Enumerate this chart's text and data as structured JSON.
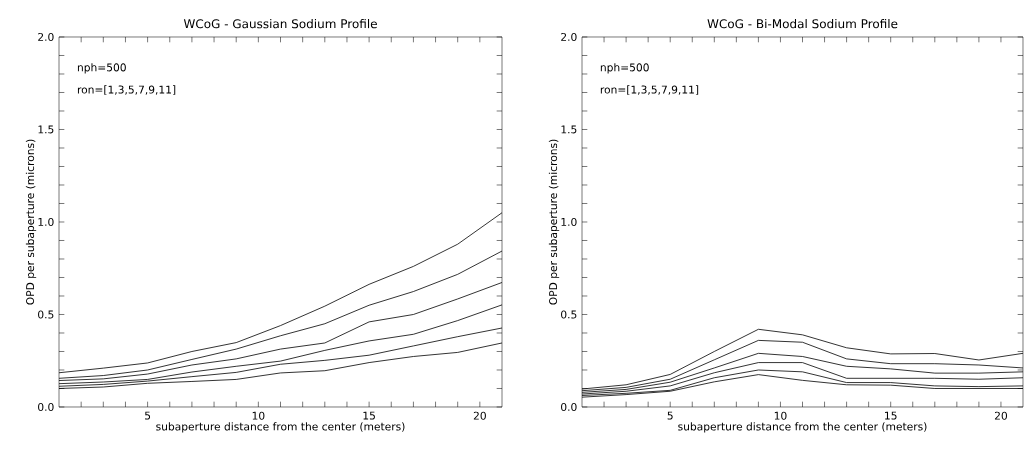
{
  "chart_data": [
    {
      "type": "line",
      "title": "WCoG - Gaussian Sodium Profile",
      "xlabel": "subaperture distance from the center (meters)",
      "ylabel": "OPD per subaperture (microns)",
      "annotations": [
        "nph=500",
        "ron=[1,3,5,7,9,11]"
      ],
      "x": [
        1,
        3,
        5,
        7,
        9,
        11,
        13,
        15,
        17,
        19,
        21
      ],
      "xlim": [
        1,
        21
      ],
      "ylim": [
        0,
        2
      ],
      "xticks": [
        {
          "value": 2,
          "label": null
        },
        {
          "value": 3,
          "label": null
        },
        {
          "value": 4,
          "label": null
        },
        5,
        {
          "value": 6,
          "label": null
        },
        {
          "value": 7,
          "label": null
        },
        {
          "value": 8,
          "label": null
        },
        {
          "value": 9,
          "label": null
        },
        10,
        {
          "value": 11,
          "label": null
        },
        {
          "value": 12,
          "label": null
        },
        {
          "value": 13,
          "label": null
        },
        {
          "value": 14,
          "label": null
        },
        15,
        {
          "value": 16,
          "label": null
        },
        {
          "value": 17,
          "label": null
        },
        {
          "value": 18,
          "label": null
        },
        {
          "value": 19,
          "label": null
        },
        20
      ],
      "yticks": [
        {
          "value": 0,
          "label": "0.0"
        },
        {
          "value": 0.1,
          "label": null
        },
        {
          "value": 0.2,
          "label": null
        },
        {
          "value": 0.3,
          "label": null
        },
        {
          "value": 0.4,
          "label": null
        },
        {
          "value": 0.5,
          "label": "0.5"
        },
        {
          "value": 0.6,
          "label": null
        },
        {
          "value": 0.7,
          "label": null
        },
        {
          "value": 0.8,
          "label": null
        },
        {
          "value": 0.9,
          "label": null
        },
        {
          "value": 1,
          "label": "1.0"
        },
        {
          "value": 1.1,
          "label": null
        },
        {
          "value": 1.2,
          "label": null
        },
        {
          "value": 1.3,
          "label": null
        },
        {
          "value": 1.4,
          "label": null
        },
        {
          "value": 1.5,
          "label": "1.5"
        },
        {
          "value": 1.6,
          "label": null
        },
        {
          "value": 1.7,
          "label": null
        },
        {
          "value": 1.8,
          "label": null
        },
        {
          "value": 1.9,
          "label": null
        },
        {
          "value": 2,
          "label": "2.0"
        }
      ],
      "grid": false,
      "marker": "none",
      "line_style": "solid",
      "series": [
        {
          "color": "#000000",
          "values": [
            0.1,
            0.108,
            0.128,
            0.138,
            0.149,
            0.184,
            0.196,
            0.24,
            0.273,
            0.295,
            0.346
          ]
        },
        {
          "color": "#000000",
          "values": [
            0.112,
            0.122,
            0.14,
            0.164,
            0.187,
            0.231,
            0.252,
            0.28,
            0.33,
            0.38,
            0.427
          ]
        },
        {
          "color": "#000000",
          "values": [
            0.126,
            0.135,
            0.149,
            0.189,
            0.22,
            0.248,
            0.306,
            0.357,
            0.393,
            0.467,
            0.552
          ]
        },
        {
          "color": "#000000",
          "values": [
            0.143,
            0.152,
            0.178,
            0.227,
            0.26,
            0.313,
            0.346,
            0.46,
            0.5,
            0.584,
            0.673
          ]
        },
        {
          "color": "#000000",
          "values": [
            0.155,
            0.17,
            0.2,
            0.257,
            0.313,
            0.385,
            0.45,
            0.55,
            0.624,
            0.717,
            0.843
          ]
        },
        {
          "color": "#000000",
          "values": [
            0.185,
            0.21,
            0.238,
            0.3,
            0.348,
            0.44,
            0.545,
            0.663,
            0.76,
            0.88,
            1.05
          ]
        }
      ]
    },
    {
      "type": "line",
      "title": "WCoG - Bi-Modal Sodium Profile",
      "xlabel": "subaperture distance from the center (meters)",
      "ylabel": "OPD per subaperture (microns)",
      "annotations": [
        "nph=500",
        "ron=[1,3,5,7,9,11]"
      ],
      "x": [
        1,
        3,
        5,
        7,
        9,
        11,
        13,
        15,
        17,
        19,
        21
      ],
      "xlim": [
        1,
        21
      ],
      "ylim": [
        0,
        2
      ],
      "xticks": [
        {
          "value": 2,
          "label": null
        },
        {
          "value": 3,
          "label": null
        },
        {
          "value": 4,
          "label": null
        },
        5,
        {
          "value": 6,
          "label": null
        },
        {
          "value": 7,
          "label": null
        },
        {
          "value": 8,
          "label": null
        },
        {
          "value": 9,
          "label": null
        },
        10,
        {
          "value": 11,
          "label": null
        },
        {
          "value": 12,
          "label": null
        },
        {
          "value": 13,
          "label": null
        },
        {
          "value": 14,
          "label": null
        },
        15,
        {
          "value": 16,
          "label": null
        },
        {
          "value": 17,
          "label": null
        },
        {
          "value": 18,
          "label": null
        },
        {
          "value": 19,
          "label": null
        },
        20
      ],
      "yticks": [
        {
          "value": 0,
          "label": "0.0"
        },
        {
          "value": 0.1,
          "label": null
        },
        {
          "value": 0.2,
          "label": null
        },
        {
          "value": 0.3,
          "label": null
        },
        {
          "value": 0.4,
          "label": null
        },
        {
          "value": 0.5,
          "label": "0.5"
        },
        {
          "value": 0.6,
          "label": null
        },
        {
          "value": 0.7,
          "label": null
        },
        {
          "value": 0.8,
          "label": null
        },
        {
          "value": 0.9,
          "label": null
        },
        {
          "value": 1,
          "label": "1.0"
        },
        {
          "value": 1.1,
          "label": null
        },
        {
          "value": 1.2,
          "label": null
        },
        {
          "value": 1.3,
          "label": null
        },
        {
          "value": 1.4,
          "label": null
        },
        {
          "value": 1.5,
          "label": "1.5"
        },
        {
          "value": 1.6,
          "label": null
        },
        {
          "value": 1.7,
          "label": null
        },
        {
          "value": 1.8,
          "label": null
        },
        {
          "value": 1.9,
          "label": null
        },
        {
          "value": 2,
          "label": "2.0"
        }
      ],
      "grid": false,
      "marker": "none",
      "line_style": "solid",
      "series": [
        {
          "color": "#000000",
          "values": [
            0.053,
            0.067,
            0.085,
            0.136,
            0.175,
            0.144,
            0.12,
            0.118,
            0.1,
            0.1,
            0.1
          ]
        },
        {
          "color": "#000000",
          "values": [
            0.062,
            0.074,
            0.09,
            0.158,
            0.2,
            0.19,
            0.132,
            0.132,
            0.114,
            0.11,
            0.114
          ]
        },
        {
          "color": "#000000",
          "values": [
            0.07,
            0.085,
            0.114,
            0.185,
            0.24,
            0.24,
            0.155,
            0.155,
            0.155,
            0.15,
            0.158
          ]
        },
        {
          "color": "#000000",
          "values": [
            0.079,
            0.095,
            0.134,
            0.211,
            0.29,
            0.273,
            0.22,
            0.206,
            0.183,
            0.183,
            0.19
          ]
        },
        {
          "color": "#000000",
          "values": [
            0.088,
            0.106,
            0.15,
            0.255,
            0.36,
            0.35,
            0.26,
            0.234,
            0.234,
            0.227,
            0.211
          ]
        },
        {
          "color": "#000000",
          "values": [
            0.097,
            0.12,
            0.176,
            0.3,
            0.42,
            0.39,
            0.32,
            0.287,
            0.289,
            0.254,
            0.29
          ]
        }
      ]
    }
  ]
}
